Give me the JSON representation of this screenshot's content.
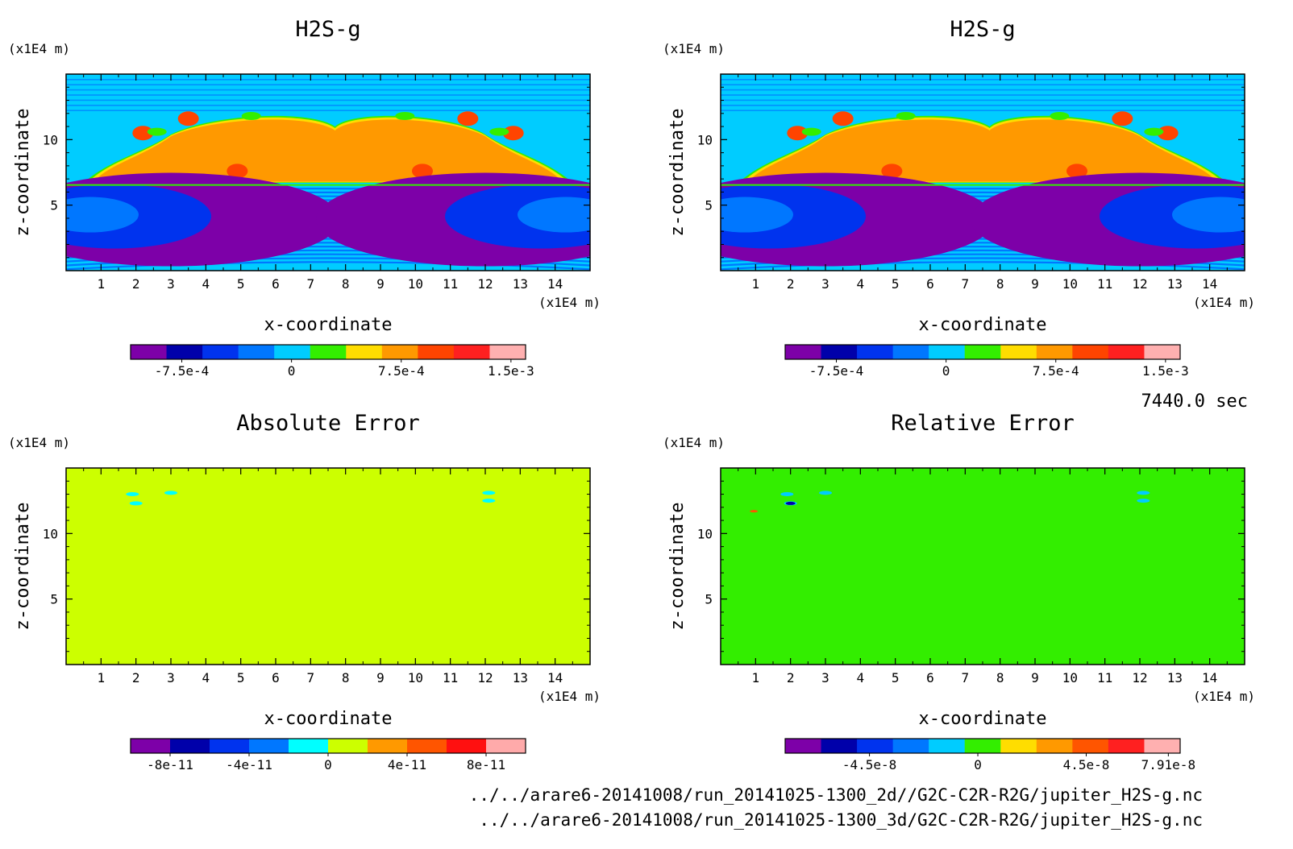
{
  "colors": {
    "h2s_levels": [
      "#7d00a8",
      "#0000aa",
      "#0033ee",
      "#0077ff",
      "#00ccff",
      "#33ee00",
      "#ffdd00",
      "#ff9900",
      "#ff4400",
      "#ff2020",
      "#ffb0b0"
    ],
    "abs_levels": [
      "#7d00a8",
      "#0000aa",
      "#0033ee",
      "#0077ff",
      "#00ffff",
      "#ccff00",
      "#ff9900",
      "#ff5500",
      "#ff1010",
      "#ffaaaa"
    ],
    "rel_levels": [
      "#7d00a8",
      "#0000aa",
      "#0033ee",
      "#0077ff",
      "#00ccff",
      "#33ee00",
      "#ffdd00",
      "#ff9900",
      "#ff5500",
      "#ff2020",
      "#ffb0b0"
    ]
  },
  "time_label": "7440.0 sec",
  "file_paths": [
    "../../arare6-20141008/run_20141025-1300_2d//G2C-C2R-R2G/jupiter_H2S-g.nc",
    "../../arare6-20141008/run_20141025-1300_3d/G2C-C2R-R2G/jupiter_H2S-g.nc"
  ],
  "chart_data": [
    {
      "type": "heatmap",
      "title": "H2S-g",
      "xlabel": "x-coordinate",
      "ylabel": "z-coordinate",
      "x_unit": "(x1E4 m)",
      "y_unit": "(x1E4 m)",
      "xlim": [
        0,
        15
      ],
      "ylim": [
        0,
        15
      ],
      "xticks": [
        "1",
        "2",
        "3",
        "4",
        "5",
        "6",
        "7",
        "8",
        "9",
        "10",
        "11",
        "12",
        "13",
        "14"
      ],
      "yticks": [
        "5",
        "10"
      ],
      "colorbar_ticks": [
        "-7.5e-4",
        "0",
        "7.5e-4",
        "1.5e-3"
      ],
      "colorbar_range": [
        -0.0011,
        0.0016
      ],
      "grid": false
    },
    {
      "type": "heatmap",
      "title": "H2S-g",
      "xlabel": "x-coordinate",
      "ylabel": "z-coordinate",
      "x_unit": "(x1E4 m)",
      "y_unit": "(x1E4 m)",
      "xlim": [
        0,
        15
      ],
      "ylim": [
        0,
        15
      ],
      "xticks": [
        "1",
        "2",
        "3",
        "4",
        "5",
        "6",
        "7",
        "8",
        "9",
        "10",
        "11",
        "12",
        "13",
        "14"
      ],
      "yticks": [
        "5",
        "10"
      ],
      "colorbar_ticks": [
        "-7.5e-4",
        "0",
        "7.5e-4",
        "1.5e-3"
      ],
      "colorbar_range": [
        -0.0011,
        0.0016
      ],
      "grid": false
    },
    {
      "type": "heatmap",
      "title": "Absolute Error",
      "xlabel": "x-coordinate",
      "ylabel": "z-coordinate",
      "x_unit": "(x1E4 m)",
      "y_unit": "(x1E4 m)",
      "xlim": [
        0,
        15
      ],
      "ylim": [
        0,
        15
      ],
      "xticks": [
        "1",
        "2",
        "3",
        "4",
        "5",
        "6",
        "7",
        "8",
        "9",
        "10",
        "11",
        "12",
        "13",
        "14"
      ],
      "yticks": [
        "5",
        "10"
      ],
      "colorbar_ticks": [
        "-8e-11",
        "-4e-11",
        "0",
        "4e-11",
        "8e-11"
      ],
      "colorbar_range": [
        -1e-10,
        1e-10
      ],
      "field_value": 0,
      "grid": false
    },
    {
      "type": "heatmap",
      "title": "Relative Error",
      "xlabel": "x-coordinate",
      "ylabel": "z-coordinate",
      "x_unit": "(x1E4 m)",
      "y_unit": "(x1E4 m)",
      "xlim": [
        0,
        15
      ],
      "ylim": [
        0,
        15
      ],
      "xticks": [
        "1",
        "2",
        "3",
        "4",
        "5",
        "6",
        "7",
        "8",
        "9",
        "10",
        "11",
        "12",
        "13",
        "14"
      ],
      "yticks": [
        "5",
        "10"
      ],
      "colorbar_ticks": [
        "-4.5e-8",
        "0",
        "4.5e-8",
        "7.91e-8"
      ],
      "colorbar_range": [
        -8e-08,
        8.4e-08
      ],
      "field_value": 0,
      "grid": false
    }
  ]
}
